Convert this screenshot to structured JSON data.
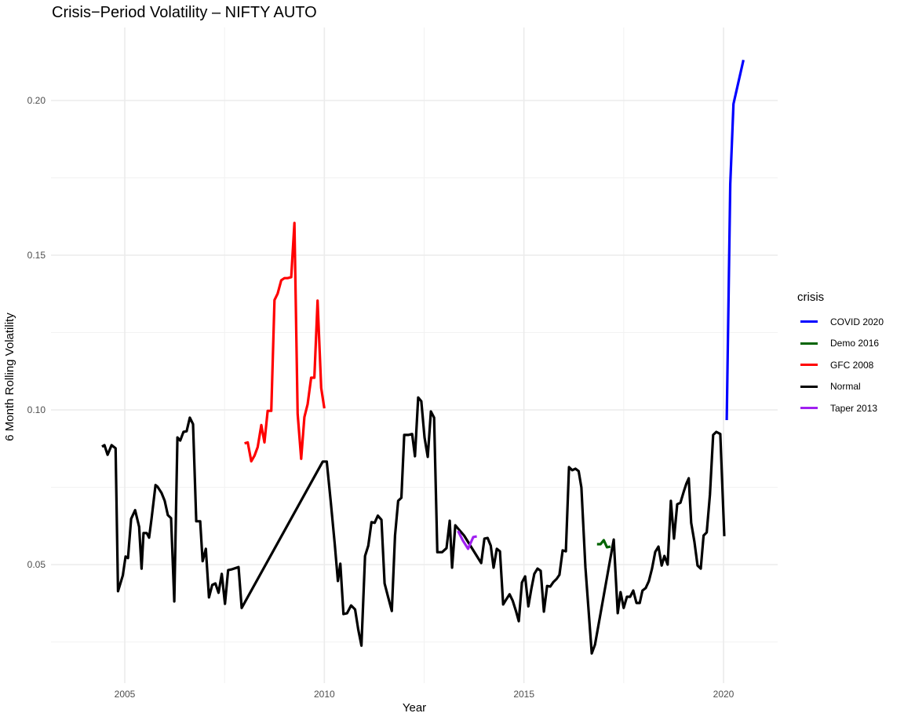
{
  "chart_data": {
    "type": "line",
    "title": "Crisis−Period Volatility – NIFTY AUTO",
    "xlabel": "Year",
    "ylabel": "6 Month Rolling Volatility",
    "xlim": [
      2003.2,
      2021.4
    ],
    "ylim": [
      0.018,
      0.224
    ],
    "x_ticks": [
      2005,
      2010,
      2015,
      2020
    ],
    "x_tick_labels": [
      "2005",
      "2010",
      "2015",
      "2020"
    ],
    "x_minor": [
      2007.5,
      2012.5,
      2017.5
    ],
    "y_ticks": [
      0.05,
      0.1,
      0.15,
      0.2
    ],
    "y_tick_labels": [
      "0.05",
      "0.10",
      "0.15",
      "0.20"
    ],
    "y_minor": [
      0.025,
      0.075,
      0.125,
      0.175
    ],
    "grid": true,
    "legend": {
      "title": "crisis",
      "position": "right"
    },
    "series": [
      {
        "name": "COVID 2020",
        "color": "#0000FF",
        "points": [
          [
            2020.08,
            0.0967
          ],
          [
            2020.17,
            0.173
          ],
          [
            2020.25,
            0.1989
          ],
          [
            2020.5,
            0.2131
          ]
        ]
      },
      {
        "name": "Demo 2016",
        "color": "#006400",
        "points": [
          [
            2016.83,
            0.0566
          ],
          [
            2016.92,
            0.0566
          ],
          [
            2017.0,
            0.0579
          ],
          [
            2017.08,
            0.0556
          ],
          [
            2017.17,
            0.0558
          ]
        ]
      },
      {
        "name": "GFC 2008",
        "color": "#FF0000",
        "points": [
          [
            2008.0,
            0.0892
          ],
          [
            2008.08,
            0.0895
          ],
          [
            2008.17,
            0.0834
          ],
          [
            2008.25,
            0.0852
          ],
          [
            2008.33,
            0.088
          ],
          [
            2008.42,
            0.0951
          ],
          [
            2008.5,
            0.0895
          ],
          [
            2008.58,
            0.0997
          ],
          [
            2008.67,
            0.0997
          ],
          [
            2008.75,
            0.1355
          ],
          [
            2008.83,
            0.1376
          ],
          [
            2008.92,
            0.1419
          ],
          [
            2009.0,
            0.1426
          ],
          [
            2009.08,
            0.1426
          ],
          [
            2009.17,
            0.1429
          ],
          [
            2009.25,
            0.1604
          ],
          [
            2009.33,
            0.0987
          ],
          [
            2009.42,
            0.0842
          ],
          [
            2009.5,
            0.0977
          ],
          [
            2009.58,
            0.1018
          ],
          [
            2009.67,
            0.1104
          ],
          [
            2009.75,
            0.1104
          ],
          [
            2009.83,
            0.1353
          ],
          [
            2009.92,
            0.1071
          ],
          [
            2010.0,
            0.1005
          ]
        ]
      },
      {
        "name": "Normal",
        "color": "#000000",
        "points": [
          [
            2004.43,
            0.0881
          ],
          [
            2004.49,
            0.0886
          ],
          [
            2004.57,
            0.0855
          ],
          [
            2004.67,
            0.0886
          ],
          [
            2004.77,
            0.0876
          ],
          [
            2004.83,
            0.0414
          ],
          [
            2004.95,
            0.0465
          ],
          [
            2005.02,
            0.0526
          ],
          [
            2005.08,
            0.0521
          ],
          [
            2005.16,
            0.0648
          ],
          [
            2005.26,
            0.0676
          ],
          [
            2005.36,
            0.0622
          ],
          [
            2005.42,
            0.0487
          ],
          [
            2005.47,
            0.0602
          ],
          [
            2005.55,
            0.0602
          ],
          [
            2005.61,
            0.0587
          ],
          [
            2005.67,
            0.0648
          ],
          [
            2005.77,
            0.0757
          ],
          [
            2005.82,
            0.0752
          ],
          [
            2005.92,
            0.0732
          ],
          [
            2006.0,
            0.0706
          ],
          [
            2006.08,
            0.066
          ],
          [
            2006.16,
            0.065
          ],
          [
            2006.24,
            0.0381
          ],
          [
            2006.32,
            0.0911
          ],
          [
            2006.39,
            0.0901
          ],
          [
            2006.47,
            0.0929
          ],
          [
            2006.55,
            0.0931
          ],
          [
            2006.63,
            0.0975
          ],
          [
            2006.71,
            0.0954
          ],
          [
            2006.79,
            0.064
          ],
          [
            2006.89,
            0.064
          ],
          [
            2006.95,
            0.0511
          ],
          [
            2007.03,
            0.0551
          ],
          [
            2007.11,
            0.0394
          ],
          [
            2007.19,
            0.0434
          ],
          [
            2007.27,
            0.0439
          ],
          [
            2007.35,
            0.0409
          ],
          [
            2007.43,
            0.047
          ],
          [
            2007.51,
            0.0373
          ],
          [
            2007.59,
            0.0482
          ],
          [
            2007.69,
            0.0485
          ],
          [
            2007.85,
            0.0492
          ],
          [
            2007.93,
            0.036
          ],
          [
            2009.96,
            0.0833
          ],
          [
            2010.06,
            0.0833
          ],
          [
            2010.16,
            0.0703
          ],
          [
            2010.26,
            0.0566
          ],
          [
            2010.34,
            0.0447
          ],
          [
            2010.4,
            0.0503
          ],
          [
            2010.48,
            0.034
          ],
          [
            2010.57,
            0.0343
          ],
          [
            2010.67,
            0.0368
          ],
          [
            2010.77,
            0.0355
          ],
          [
            2010.85,
            0.0289
          ],
          [
            2010.93,
            0.0238
          ],
          [
            2011.02,
            0.0528
          ],
          [
            2011.1,
            0.0561
          ],
          [
            2011.18,
            0.0637
          ],
          [
            2011.26,
            0.0635
          ],
          [
            2011.34,
            0.0658
          ],
          [
            2011.43,
            0.0645
          ],
          [
            2011.51,
            0.0439
          ],
          [
            2011.59,
            0.0399
          ],
          [
            2011.69,
            0.035
          ],
          [
            2011.77,
            0.0594
          ],
          [
            2011.85,
            0.0706
          ],
          [
            2011.93,
            0.0716
          ],
          [
            2012.0,
            0.0919
          ],
          [
            2012.1,
            0.0919
          ],
          [
            2012.2,
            0.0922
          ],
          [
            2012.27,
            0.085
          ],
          [
            2012.35,
            0.104
          ],
          [
            2012.43,
            0.1028
          ],
          [
            2012.51,
            0.0911
          ],
          [
            2012.59,
            0.0848
          ],
          [
            2012.67,
            0.0995
          ],
          [
            2012.75,
            0.0975
          ],
          [
            2012.83,
            0.054
          ],
          [
            2012.95,
            0.054
          ],
          [
            2013.06,
            0.0553
          ],
          [
            2013.14,
            0.0642
          ],
          [
            2013.2,
            0.049
          ],
          [
            2013.28,
            0.0627
          ],
          [
            2013.5,
            0.0594
          ],
          [
            2013.93,
            0.0505
          ],
          [
            2014.01,
            0.0584
          ],
          [
            2014.09,
            0.0586
          ],
          [
            2014.17,
            0.0561
          ],
          [
            2014.24,
            0.049
          ],
          [
            2014.32,
            0.0551
          ],
          [
            2014.4,
            0.0543
          ],
          [
            2014.48,
            0.0371
          ],
          [
            2014.56,
            0.0388
          ],
          [
            2014.64,
            0.0404
          ],
          [
            2014.72,
            0.0383
          ],
          [
            2014.8,
            0.035
          ],
          [
            2014.87,
            0.0317
          ],
          [
            2014.95,
            0.0442
          ],
          [
            2015.03,
            0.0462
          ],
          [
            2015.11,
            0.0365
          ],
          [
            2015.19,
            0.0424
          ],
          [
            2015.26,
            0.047
          ],
          [
            2015.34,
            0.0487
          ],
          [
            2015.42,
            0.048
          ],
          [
            2015.5,
            0.0348
          ],
          [
            2015.58,
            0.0431
          ],
          [
            2015.66,
            0.0429
          ],
          [
            2015.74,
            0.0444
          ],
          [
            2015.82,
            0.0454
          ],
          [
            2015.89,
            0.0467
          ],
          [
            2015.97,
            0.0546
          ],
          [
            2016.05,
            0.0543
          ],
          [
            2016.13,
            0.0815
          ],
          [
            2016.21,
            0.0805
          ],
          [
            2016.29,
            0.081
          ],
          [
            2016.37,
            0.0802
          ],
          [
            2016.44,
            0.0749
          ],
          [
            2016.54,
            0.0492
          ],
          [
            2016.7,
            0.0213
          ],
          [
            2016.78,
            0.0241
          ],
          [
            2017.25,
            0.0581
          ],
          [
            2017.35,
            0.0343
          ],
          [
            2017.42,
            0.0411
          ],
          [
            2017.5,
            0.036
          ],
          [
            2017.58,
            0.0396
          ],
          [
            2017.66,
            0.0396
          ],
          [
            2017.74,
            0.0416
          ],
          [
            2017.82,
            0.0376
          ],
          [
            2017.9,
            0.0376
          ],
          [
            2017.97,
            0.0416
          ],
          [
            2018.05,
            0.0424
          ],
          [
            2018.13,
            0.0447
          ],
          [
            2018.21,
            0.0487
          ],
          [
            2018.29,
            0.0541
          ],
          [
            2018.37,
            0.0558
          ],
          [
            2018.45,
            0.0497
          ],
          [
            2018.52,
            0.0528
          ],
          [
            2018.6,
            0.05
          ],
          [
            2018.68,
            0.0706
          ],
          [
            2018.76,
            0.0584
          ],
          [
            2018.84,
            0.0695
          ],
          [
            2018.92,
            0.07
          ],
          [
            2019.0,
            0.0734
          ],
          [
            2019.07,
            0.0762
          ],
          [
            2019.13,
            0.0779
          ],
          [
            2019.19,
            0.0635
          ],
          [
            2019.27,
            0.0574
          ],
          [
            2019.35,
            0.0497
          ],
          [
            2019.43,
            0.0487
          ],
          [
            2019.5,
            0.0594
          ],
          [
            2019.58,
            0.0604
          ],
          [
            2019.66,
            0.0726
          ],
          [
            2019.74,
            0.0919
          ],
          [
            2019.82,
            0.0929
          ],
          [
            2019.92,
            0.0922
          ],
          [
            2020.02,
            0.0592
          ]
        ]
      },
      {
        "name": "Taper 2013",
        "color": "#A020F0",
        "points": [
          [
            2013.35,
            0.0609
          ],
          [
            2013.47,
            0.0578
          ],
          [
            2013.6,
            0.0551
          ],
          [
            2013.73,
            0.0589
          ],
          [
            2013.82,
            0.0591
          ]
        ]
      }
    ]
  },
  "legend_items": [
    {
      "label": "COVID 2020",
      "color": "#0000FF"
    },
    {
      "label": "Demo 2016",
      "color": "#006400"
    },
    {
      "label": "GFC 2008",
      "color": "#FF0000"
    },
    {
      "label": "Normal",
      "color": "#000000"
    },
    {
      "label": "Taper 2013",
      "color": "#A020F0"
    }
  ]
}
